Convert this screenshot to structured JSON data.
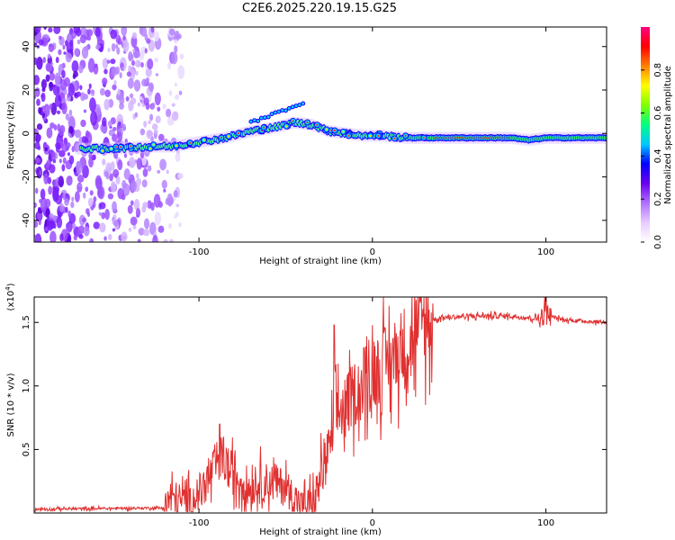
{
  "title": "C2E6.2025.220.19.15.G25",
  "chart_data": [
    {
      "type": "heatmap",
      "xlabel": "Height of straight line (km)",
      "ylabel": "Frequency (Hz)",
      "xlim": [
        -195,
        135
      ],
      "ylim": [
        -50,
        49
      ],
      "xticks": [
        -100,
        0,
        100
      ],
      "yticks": [
        -40,
        -20,
        0,
        20,
        40
      ],
      "colorbar": {
        "label": "Normalized spectral amplitude",
        "range": [
          0,
          1
        ],
        "ticks": [
          "0.0",
          "0.2",
          "0.4",
          "0.6",
          "0.8"
        ],
        "colormap": [
          "#ffffff",
          "#e8ccff",
          "#b070ff",
          "#6a00ee",
          "#0000ff",
          "#00c8ff",
          "#00ff80",
          "#80ff00",
          "#ffff00",
          "#ff8000",
          "#ff0000",
          "#ff0080"
        ]
      },
      "ridge": {
        "x": [
          -165,
          -150,
          -130,
          -115,
          -100,
          -85,
          -70,
          -55,
          -45,
          -35,
          -25,
          -15,
          -5,
          5,
          20,
          40,
          60,
          80,
          90,
          100,
          120,
          135
        ],
        "y": [
          -7,
          -7,
          -6,
          -6,
          -4,
          -2,
          1,
          3,
          5,
          4,
          1,
          0,
          -1,
          -1,
          -2,
          -2,
          -2,
          -2,
          -3,
          -2,
          -2,
          -2
        ]
      }
    },
    {
      "type": "line",
      "xlabel": "Height of straight line (km)",
      "ylabel": "SNR (10 * v/v)",
      "yscale_label": "(x10",
      "yscale_exp": "4",
      "xlim": [
        -195,
        135
      ],
      "ylim": [
        0,
        1.7
      ],
      "xticks": [
        -100,
        0,
        100
      ],
      "yticks": [
        0.5,
        1.0,
        1.5
      ],
      "ytick_labels": [
        "0.5",
        "1.0",
        "1.5"
      ],
      "color": "#e03030",
      "envelope": {
        "x": [
          -195,
          -120,
          -115,
          -105,
          -95,
          -88,
          -80,
          -70,
          -60,
          -50,
          -40,
          -33,
          -30,
          -25,
          -20,
          -15,
          -10,
          -5,
          0,
          10,
          20,
          30,
          40,
          60,
          80,
          95,
          100,
          110,
          135
        ],
        "y": [
          0.03,
          0.04,
          0.12,
          0.08,
          0.25,
          0.45,
          0.3,
          0.2,
          0.25,
          0.2,
          0.05,
          0.1,
          0.3,
          0.5,
          0.8,
          0.85,
          0.95,
          1.0,
          1.1,
          1.2,
          1.35,
          1.5,
          1.54,
          1.55,
          1.55,
          1.53,
          1.56,
          1.52,
          1.5
        ]
      },
      "peaks": [
        {
          "x": -88,
          "y": 0.7
        },
        {
          "x": -22,
          "y": 1.48
        },
        {
          "x": -5,
          "y": 1.3
        },
        {
          "x": 100,
          "y": 1.7
        }
      ]
    }
  ]
}
